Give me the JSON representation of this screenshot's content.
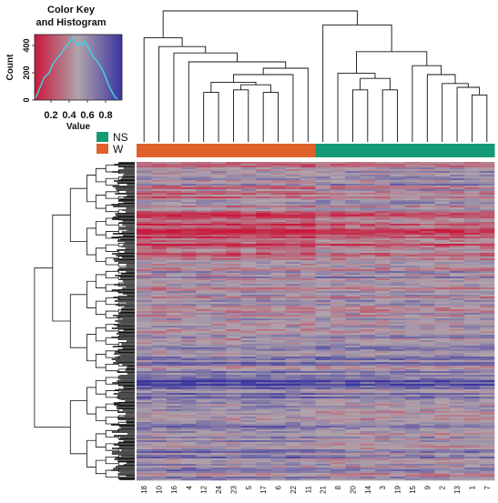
{
  "chart_data": {
    "type": "heatmap",
    "color_key": {
      "title_line1": "Color Key",
      "title_line2": "and Histogram",
      "xlabel": "Value",
      "ylabel": "Count",
      "x_ticks": [
        "0.2",
        "0.4",
        "0.6",
        "0.8"
      ],
      "x_tick_values": [
        0.2,
        0.4,
        0.6,
        0.8
      ],
      "y_ticks": [
        "0",
        "200",
        "400"
      ],
      "y_tick_values": [
        0,
        200,
        400
      ],
      "xlim": [
        0.02,
        0.98
      ],
      "ylim": [
        0,
        480
      ],
      "gradient_colors": [
        "#c9183c",
        "#b0a3ab",
        "#3a35a0"
      ],
      "hist_color": "#3ad8e8",
      "histogram": [
        [
          0.03,
          15
        ],
        [
          0.06,
          60
        ],
        [
          0.09,
          110
        ],
        [
          0.12,
          160
        ],
        [
          0.15,
          180
        ],
        [
          0.18,
          200
        ],
        [
          0.21,
          250
        ],
        [
          0.24,
          280
        ],
        [
          0.27,
          310
        ],
        [
          0.3,
          330
        ],
        [
          0.33,
          360
        ],
        [
          0.36,
          390
        ],
        [
          0.39,
          410
        ],
        [
          0.42,
          440
        ],
        [
          0.44,
          460
        ],
        [
          0.46,
          430
        ],
        [
          0.49,
          400
        ],
        [
          0.52,
          420
        ],
        [
          0.55,
          405
        ],
        [
          0.57,
          430
        ],
        [
          0.6,
          400
        ],
        [
          0.63,
          360
        ],
        [
          0.66,
          320
        ],
        [
          0.69,
          300
        ],
        [
          0.72,
          270
        ],
        [
          0.75,
          240
        ],
        [
          0.78,
          200
        ],
        [
          0.81,
          150
        ],
        [
          0.84,
          100
        ],
        [
          0.87,
          60
        ],
        [
          0.9,
          25
        ],
        [
          0.93,
          8
        ]
      ]
    },
    "legend": [
      {
        "name": "NS",
        "color": "#149a74"
      },
      {
        "name": "W",
        "color": "#e0622a"
      }
    ],
    "columns": [
      "18",
      "10",
      "16",
      "4",
      "12",
      "24",
      "23",
      "5",
      "17",
      "6",
      "22",
      "11",
      "21",
      "8",
      "20",
      "14",
      "3",
      "19",
      "15",
      "9",
      "2",
      "13",
      "1",
      "7"
    ],
    "column_groups": [
      "W",
      "W",
      "W",
      "W",
      "W",
      "W",
      "W",
      "W",
      "W",
      "W",
      "W",
      "W",
      "NS",
      "NS",
      "NS",
      "NS",
      "NS",
      "NS",
      "NS",
      "NS",
      "NS",
      "NS",
      "NS",
      "NS"
    ],
    "heatmap_colors": {
      "low": "#c9183c",
      "mid": "#b0a3ab",
      "high": "#3a35a0"
    },
    "row_bands": [
      [
        0.0,
        0.02,
        0.4,
        0.45
      ],
      [
        0.02,
        0.07,
        0.48,
        0.55
      ],
      [
        0.07,
        0.11,
        0.38,
        0.5
      ],
      [
        0.11,
        0.16,
        0.42,
        0.48
      ],
      [
        0.16,
        0.2,
        0.18,
        0.3
      ],
      [
        0.2,
        0.26,
        0.15,
        0.25
      ],
      [
        0.26,
        0.3,
        0.3,
        0.4
      ],
      [
        0.3,
        0.34,
        0.44,
        0.46
      ],
      [
        0.34,
        0.38,
        0.52,
        0.55
      ],
      [
        0.38,
        0.44,
        0.5,
        0.5
      ],
      [
        0.44,
        0.5,
        0.52,
        0.54
      ],
      [
        0.5,
        0.56,
        0.46,
        0.5
      ],
      [
        0.56,
        0.62,
        0.55,
        0.6
      ],
      [
        0.62,
        0.68,
        0.62,
        0.6
      ],
      [
        0.68,
        0.7,
        0.88,
        0.82
      ],
      [
        0.7,
        0.78,
        0.68,
        0.62
      ],
      [
        0.78,
        0.86,
        0.6,
        0.55
      ],
      [
        0.86,
        0.94,
        0.64,
        0.58
      ],
      [
        0.94,
        1.0,
        0.58,
        0.52
      ]
    ],
    "column_dendrogram": {
      "merges": [
        [
          0,
          13,
          0.0,
          0.67
        ],
        [
          2,
          14,
          0.0,
          0.29
        ],
        [
          3,
          15,
          0.0,
          0.28
        ],
        [
          4,
          16,
          0.0,
          0.2
        ],
        [
          5,
          19,
          0.0,
          0.21
        ],
        [
          6,
          7,
          0.33,
          0.25
        ],
        [
          8,
          9,
          0.25,
          0.14
        ],
        [
          10,
          11,
          0.33,
          0.15
        ],
        [
          12,
          16,
          0.0,
          0.13
        ],
        [
          14,
          22,
          0.0,
          0.0
        ],
        [
          15,
          17,
          0.3,
          0.23
        ],
        [
          18,
          19,
          0.0,
          0.25
        ],
        [
          20,
          21,
          0.0,
          0.25
        ],
        [
          22,
          23,
          0.0,
          0.0
        ],
        [
          1,
          22,
          0.0,
          0.0
        ],
        [
          16,
          17,
          0.0,
          0.0
        ]
      ]
    }
  }
}
